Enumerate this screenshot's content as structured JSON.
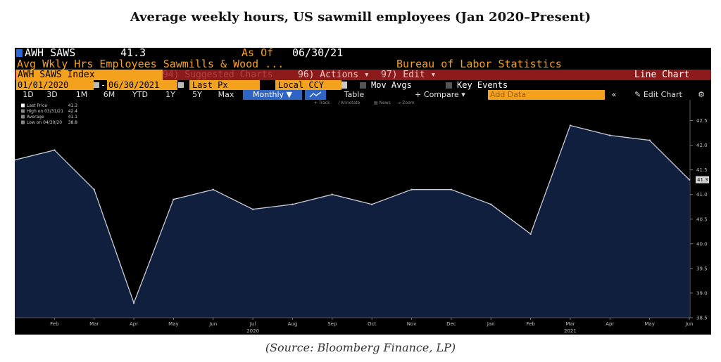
{
  "page_title": "Average weekly hours, US sawmill employees (Jan 2020–Present)",
  "source": "(Source: Bloomberg Finance, LP)",
  "terminal": {
    "ticker": "AWH SAWS",
    "last_value": "41.3",
    "as_of_label": "As Of",
    "as_of_date": "06/30/21",
    "description": "Avg Wkly Hrs Employees Sawmills & Wood ...",
    "publisher": "Bureau of Labor Statistics",
    "index_label": "AWH SAWS Index",
    "suggested_charts": "94) Suggested Charts",
    "actions": "96) Actions ▾",
    "edit": "97) Edit ▾",
    "chart_type_label": "Line Chart",
    "start_date": "01/01/2020",
    "end_date": "06/30/2021",
    "last_px": "Last Px",
    "currency": "Local CCY",
    "mov_avgs": "Mov Avgs",
    "key_events": "Key Events",
    "ranges": [
      "1D",
      "3D",
      "1M",
      "6M",
      "YTD",
      "1Y",
      "5Y",
      "Max"
    ],
    "frequency": "Monthly ▼",
    "table_label": "Table",
    "compare_label": "+ Compare ▾",
    "add_data_placeholder": "Add Data",
    "collapse_label": "«",
    "edit_chart_label": "Edit Chart",
    "tools": [
      "+ Track",
      "⁄ Annotate",
      "▤ News",
      "⌕ Zoom"
    ],
    "legend": [
      {
        "label": "Last Price",
        "value": "41.3"
      },
      {
        "label": "High on 03/31/21",
        "value": "42.4"
      },
      {
        "label": "Average",
        "value": "41.1"
      },
      {
        "label": "Low on 04/30/20",
        "value": "38.8"
      }
    ]
  },
  "colors": {
    "amber": "#f4a11e",
    "terminal_bg": "#000000",
    "area_fill": "#0f1f3d",
    "line": "#c8ccd8",
    "header_red": "#8c1a1a",
    "highlight_blue": "#2e64c4"
  },
  "chart_data": {
    "type": "area",
    "series": [
      {
        "name": "AWH SAWS Index",
        "x": [
          "2020-01",
          "2020-02",
          "2020-03",
          "2020-04",
          "2020-05",
          "2020-06",
          "2020-07",
          "2020-08",
          "2020-09",
          "2020-10",
          "2020-11",
          "2020-12",
          "2021-01",
          "2021-02",
          "2021-03",
          "2021-04",
          "2021-05",
          "2021-06"
        ],
        "values": [
          41.7,
          41.9,
          41.1,
          38.8,
          40.9,
          41.1,
          40.7,
          40.8,
          41.0,
          40.8,
          41.1,
          41.1,
          40.8,
          40.2,
          42.4,
          42.2,
          42.1,
          41.3
        ]
      }
    ],
    "x_tick_labels": [
      "Feb",
      "Mar",
      "Apr",
      "May",
      "Jun",
      "Jul",
      "Aug",
      "Sep",
      "Oct",
      "Nov",
      "Dec",
      "Jan",
      "Feb",
      "Mar",
      "Apr",
      "May",
      "Jun"
    ],
    "year_labels": [
      {
        "label": "2020",
        "month": "2020-07"
      },
      {
        "label": "2021",
        "month": "2021-03"
      }
    ],
    "y_ticks": [
      "38.5",
      "39.0",
      "39.5",
      "40.0",
      "40.5",
      "41.0",
      "41.5",
      "42.0",
      "42.5"
    ],
    "ylim": [
      38.5,
      42.75
    ],
    "last_value_label": "41.3",
    "grid": false,
    "legend_placement": "top-left"
  }
}
